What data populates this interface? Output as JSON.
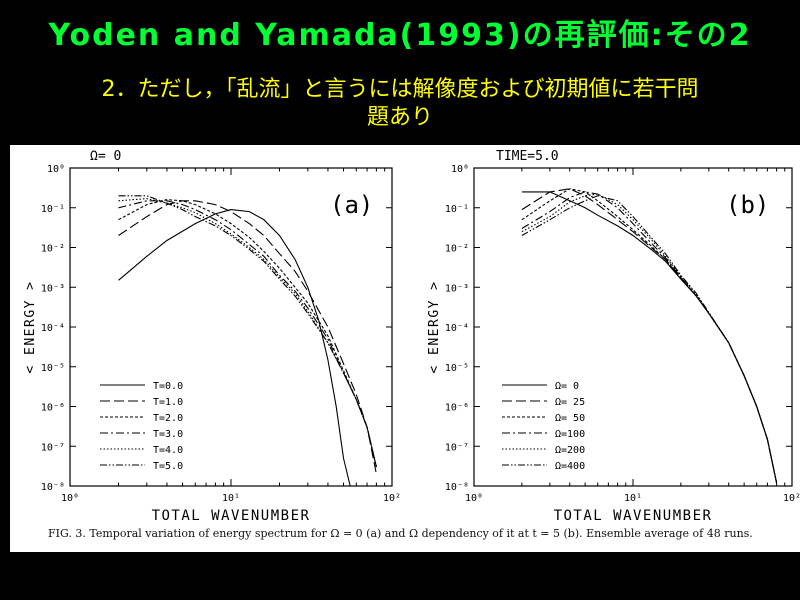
{
  "slide": {
    "title": "Yoden and Yamada(1993)の再評価:その2",
    "subtitle_line1": "2．ただし，「乱流」と言うには解像度および初期値に若干問",
    "subtitle_line2": "題あり",
    "colors": {
      "title": "#00ff33",
      "subtitle": "#ffff00",
      "background": "#000000",
      "figure": "#ffffff"
    }
  },
  "caption": "FIG. 3. Temporal variation of energy spectrum for Ω = 0 (a) and Ω dependency of it at t = 5 (b). Ensemble average of 48 runs.",
  "chart_data": [
    {
      "type": "line",
      "panel_label": "(a)",
      "title": "Ω=  0",
      "xlabel": "TOTAL WAVENUMBER",
      "ylabel": "< ENERGY >",
      "xscale": "log",
      "yscale": "log",
      "xlim": [
        1,
        100
      ],
      "ylim": [
        1e-08,
        1
      ],
      "xticks": [
        "10⁰",
        "10¹",
        "10²"
      ],
      "yticks": [
        "10⁻⁸",
        "10⁻⁷",
        "10⁻⁶",
        "10⁻⁵",
        "10⁻⁴",
        "10⁻³",
        "10⁻²",
        "10⁻¹",
        "10⁰"
      ],
      "legend_position": "bottom-left",
      "series": [
        {
          "name": "T=0.0",
          "dash": "solid",
          "x": [
            2,
            3,
            4,
            6,
            8,
            10,
            13,
            16,
            20,
            25,
            30,
            35,
            40,
            45,
            50,
            55
          ],
          "y": [
            0.0015,
            0.006,
            0.015,
            0.04,
            0.07,
            0.09,
            0.08,
            0.05,
            0.02,
            0.005,
            0.001,
            0.00015,
            1.5e-05,
            1e-06,
            5e-08,
            1e-08
          ]
        },
        {
          "name": "T=1.0",
          "dash": "longdash",
          "x": [
            2,
            3,
            4,
            5,
            6,
            8,
            10,
            13,
            16,
            20,
            25,
            30,
            40,
            50,
            60,
            70,
            80
          ],
          "y": [
            0.02,
            0.06,
            0.12,
            0.15,
            0.15,
            0.12,
            0.08,
            0.04,
            0.02,
            0.007,
            0.0025,
            0.0008,
            0.0001,
            1.2e-05,
            2e-06,
            3e-07,
            2e-08
          ]
        },
        {
          "name": "T=2.0",
          "dash": "shortdash",
          "x": [
            2,
            3,
            4,
            5,
            6,
            8,
            10,
            13,
            16,
            20,
            25,
            30,
            40,
            50,
            60,
            70,
            80
          ],
          "y": [
            0.05,
            0.12,
            0.16,
            0.15,
            0.12,
            0.07,
            0.04,
            0.018,
            0.008,
            0.003,
            0.001,
            0.0004,
            6e-05,
            8e-06,
            1.5e-06,
            3e-07,
            3e-08
          ]
        },
        {
          "name": "T=3.0",
          "dash": "dashdot",
          "x": [
            2,
            3,
            4,
            5,
            6,
            8,
            10,
            13,
            16,
            20,
            25,
            30,
            40,
            50,
            60,
            70,
            80
          ],
          "y": [
            0.1,
            0.15,
            0.15,
            0.12,
            0.09,
            0.05,
            0.028,
            0.012,
            0.006,
            0.002,
            0.0008,
            0.0003,
            5e-05,
            7e-06,
            1.5e-06,
            3e-07,
            3e-08
          ]
        },
        {
          "name": "T=4.0",
          "dash": "dotted",
          "x": [
            2,
            3,
            4,
            5,
            6,
            8,
            10,
            13,
            16,
            20,
            25,
            30,
            40,
            50,
            60,
            70,
            80
          ],
          "y": [
            0.15,
            0.17,
            0.13,
            0.1,
            0.075,
            0.04,
            0.022,
            0.01,
            0.005,
            0.0018,
            0.0007,
            0.00025,
            4e-05,
            7e-06,
            1.5e-06,
            3e-07,
            3e-08
          ]
        },
        {
          "name": "T=5.0",
          "dash": "dashdotdot",
          "x": [
            2,
            3,
            4,
            5,
            6,
            8,
            10,
            13,
            16,
            20,
            25,
            30,
            40,
            50,
            60,
            70,
            80
          ],
          "y": [
            0.2,
            0.2,
            0.13,
            0.09,
            0.06,
            0.035,
            0.02,
            0.009,
            0.0045,
            0.0016,
            0.0006,
            0.00022,
            4e-05,
            7e-06,
            1.5e-06,
            3e-07,
            3e-08
          ]
        }
      ]
    },
    {
      "type": "line",
      "panel_label": "(b)",
      "title": "TIME=5.0",
      "xlabel": "TOTAL WAVENUMBER",
      "ylabel": "< ENERGY >",
      "xscale": "log",
      "yscale": "log",
      "xlim": [
        1,
        100
      ],
      "ylim": [
        1e-08,
        1
      ],
      "xticks": [
        "10⁰",
        "10¹",
        "10²"
      ],
      "yticks": [
        "10⁻⁸",
        "10⁻⁷",
        "10⁻⁶",
        "10⁻⁵",
        "10⁻⁴",
        "10⁻³",
        "10⁻²",
        "10⁻¹",
        "10⁰"
      ],
      "legend_position": "bottom-left",
      "series": [
        {
          "name": "Ω=  0",
          "dash": "solid",
          "x": [
            2,
            3,
            4,
            5,
            6,
            8,
            10,
            13,
            16,
            20,
            25,
            30,
            40,
            50,
            60,
            70,
            80
          ],
          "y": [
            0.25,
            0.25,
            0.15,
            0.1,
            0.065,
            0.035,
            0.02,
            0.009,
            0.0045,
            0.0016,
            0.0006,
            0.00022,
            4e-05,
            6e-06,
            1e-06,
            1.5e-07,
            1.2e-08
          ]
        },
        {
          "name": "Ω= 25",
          "dash": "longdash",
          "x": [
            2,
            3,
            4,
            5,
            6,
            8,
            10,
            13,
            16,
            20,
            25,
            30,
            40,
            50,
            60,
            70,
            80
          ],
          "y": [
            0.09,
            0.25,
            0.3,
            0.2,
            0.12,
            0.05,
            0.025,
            0.01,
            0.005,
            0.0017,
            0.0006,
            0.00022,
            4e-05,
            6e-06,
            1e-06,
            1.5e-07,
            1.2e-08
          ]
        },
        {
          "name": "Ω= 50",
          "dash": "shortdash",
          "x": [
            2,
            3,
            4,
            5,
            6,
            8,
            10,
            13,
            16,
            20,
            25,
            30,
            40,
            50,
            60,
            70,
            80
          ],
          "y": [
            0.05,
            0.15,
            0.3,
            0.25,
            0.15,
            0.06,
            0.028,
            0.011,
            0.005,
            0.0017,
            0.0006,
            0.00022,
            4e-05,
            6e-06,
            1e-06,
            1.5e-07,
            1.2e-08
          ]
        },
        {
          "name": "Ω=100",
          "dash": "dashdot",
          "x": [
            2,
            3,
            4,
            5,
            6,
            8,
            10,
            13,
            16,
            20,
            25,
            30,
            40,
            50,
            60,
            70,
            80
          ],
          "y": [
            0.03,
            0.08,
            0.18,
            0.25,
            0.22,
            0.1,
            0.04,
            0.013,
            0.0055,
            0.0018,
            0.0006,
            0.00022,
            4e-05,
            6e-06,
            1e-06,
            1.5e-07,
            1.2e-08
          ]
        },
        {
          "name": "Ω=200",
          "dash": "dotted",
          "x": [
            2,
            3,
            4,
            5,
            6,
            8,
            10,
            13,
            16,
            20,
            25,
            30,
            40,
            50,
            60,
            70,
            80
          ],
          "y": [
            0.025,
            0.06,
            0.14,
            0.2,
            0.22,
            0.12,
            0.05,
            0.016,
            0.006,
            0.0019,
            0.00065,
            0.00022,
            4e-05,
            6e-06,
            1e-06,
            1.5e-07,
            1.2e-08
          ]
        },
        {
          "name": "Ω=400",
          "dash": "dashdotdot",
          "x": [
            2,
            3,
            4,
            5,
            6,
            8,
            10,
            13,
            16,
            20,
            25,
            30,
            40,
            50,
            60,
            70,
            80
          ],
          "y": [
            0.02,
            0.05,
            0.1,
            0.15,
            0.2,
            0.15,
            0.06,
            0.018,
            0.007,
            0.002,
            0.0007,
            0.00023,
            4e-05,
            6e-06,
            1e-06,
            1.5e-07,
            1.2e-08
          ]
        }
      ]
    }
  ]
}
